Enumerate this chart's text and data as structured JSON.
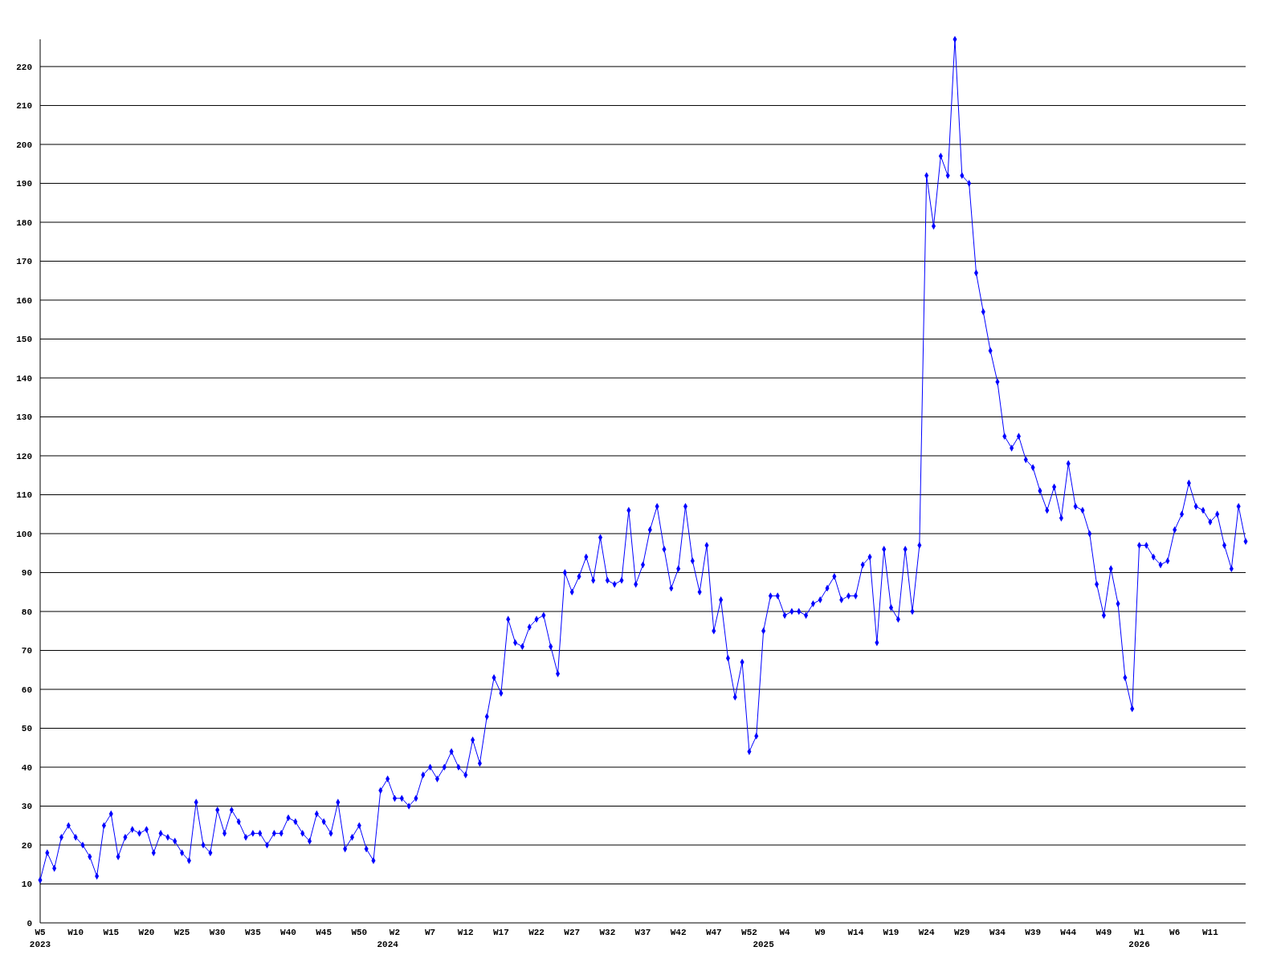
{
  "chart_data": {
    "type": "line",
    "categories": [
      "W5\n2023",
      null,
      null,
      null,
      null,
      "W10",
      null,
      null,
      null,
      null,
      "W15",
      null,
      null,
      null,
      null,
      "W20",
      null,
      null,
      null,
      null,
      "W25",
      null,
      null,
      null,
      null,
      "W30",
      null,
      null,
      null,
      null,
      "W35",
      null,
      null,
      null,
      null,
      "W40",
      null,
      null,
      null,
      null,
      "W45",
      null,
      null,
      null,
      null,
      "W50",
      null,
      null,
      null,
      "\n2024",
      "W2",
      null,
      null,
      null,
      null,
      "W7",
      null,
      null,
      null,
      null,
      "W12",
      null,
      null,
      null,
      null,
      "W17",
      null,
      null,
      null,
      null,
      "W22",
      null,
      null,
      null,
      null,
      "W27",
      null,
      null,
      null,
      null,
      "W32",
      null,
      null,
      null,
      null,
      "W37",
      null,
      null,
      null,
      null,
      "W42",
      null,
      null,
      null,
      null,
      "W47",
      null,
      null,
      null,
      null,
      "W52",
      null,
      "\n2025",
      null,
      null,
      "W4",
      null,
      null,
      null,
      null,
      "W9",
      null,
      null,
      null,
      null,
      "W14",
      null,
      null,
      null,
      null,
      "W19",
      null,
      null,
      null,
      null,
      "W24",
      null,
      null,
      null,
      null,
      "W29",
      null,
      null,
      null,
      null,
      "W34",
      null,
      null,
      null,
      null,
      "W39",
      null,
      null,
      null,
      null,
      "W44",
      null,
      null,
      null,
      null,
      "W49",
      null,
      null,
      null,
      null,
      "W1\n2026",
      null,
      null,
      null,
      null,
      "W6",
      null,
      null,
      null,
      null,
      "W11",
      null,
      null,
      null,
      null,
      null
    ],
    "series": [
      {
        "color": "#0000ff",
        "values": [
          11,
          18,
          14,
          22,
          25,
          22,
          20,
          17,
          12,
          25,
          28,
          17,
          22,
          24,
          23,
          24,
          18,
          23,
          22,
          21,
          18,
          16,
          31,
          20,
          18,
          29,
          23,
          29,
          26,
          22,
          23,
          23,
          20,
          23,
          23,
          27,
          26,
          23,
          21,
          28,
          26,
          23,
          31,
          19,
          22,
          25,
          19,
          16,
          34,
          37,
          32,
          32,
          30,
          32,
          38,
          40,
          37,
          40,
          44,
          40,
          38,
          47,
          41,
          53,
          63,
          59,
          78,
          72,
          71,
          76,
          78,
          79,
          71,
          64,
          90,
          85,
          89,
          94,
          88,
          99,
          88,
          87,
          88,
          106,
          87,
          92,
          101,
          107,
          96,
          86,
          91,
          107,
          93,
          85,
          97,
          75,
          83,
          68,
          58,
          67,
          44,
          48,
          75,
          84,
          84,
          79,
          80,
          80,
          79,
          82,
          83,
          86,
          89,
          83,
          84,
          84,
          92,
          94,
          72,
          96,
          81,
          78,
          96,
          80,
          97,
          192,
          179,
          197,
          192,
          227,
          192,
          190,
          167,
          157,
          147,
          139,
          125,
          122,
          125,
          119,
          117,
          111,
          106,
          112,
          104,
          118,
          107,
          106,
          100,
          87,
          79,
          91,
          82,
          63,
          55,
          97,
          97,
          94,
          92,
          93,
          101,
          105,
          113,
          107,
          106,
          103,
          105,
          97,
          91,
          107,
          98
        ]
      }
    ],
    "ylim": [
      0,
      227
    ],
    "yticks": [
      0,
      10,
      20,
      30,
      40,
      50,
      60,
      70,
      80,
      90,
      100,
      110,
      120,
      130,
      140,
      150,
      160,
      170,
      180,
      190,
      200,
      210,
      220
    ],
    "grid": "y",
    "marker": "diamond",
    "line_style": "solid"
  }
}
